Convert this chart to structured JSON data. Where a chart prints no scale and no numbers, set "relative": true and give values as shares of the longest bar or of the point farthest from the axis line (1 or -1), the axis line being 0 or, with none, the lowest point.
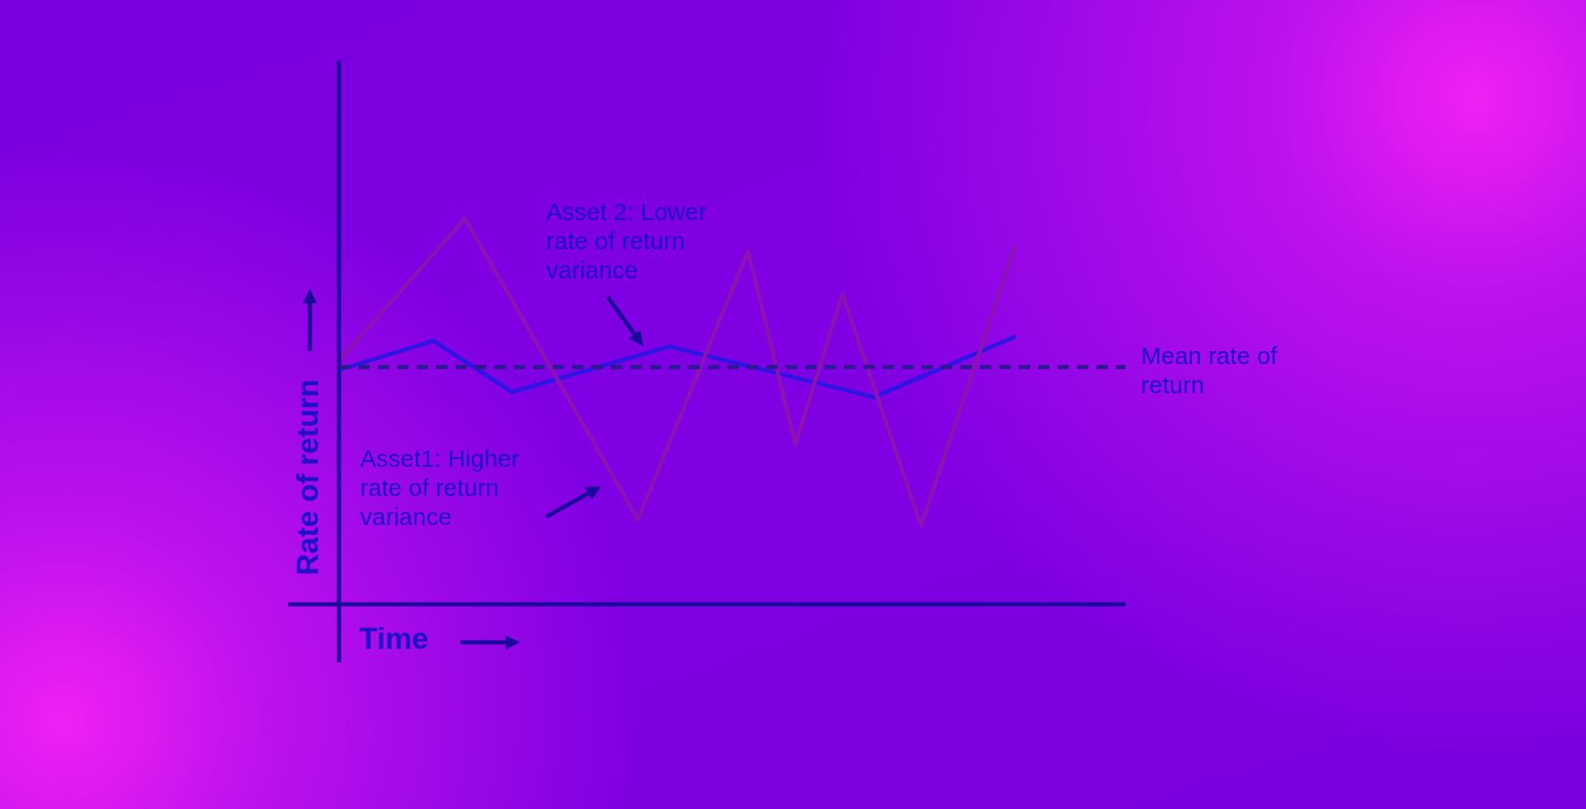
{
  "chart_data": {
    "type": "line",
    "relative": true,
    "xlabel": "Time",
    "ylabel": "Rate of return",
    "categories": [
      null,
      null,
      null,
      null,
      null,
      null,
      null,
      null,
      null,
      null,
      null,
      null,
      null,
      null,
      null,
      null,
      null,
      null,
      null,
      null,
      null,
      null,
      null,
      null,
      null,
      null,
      null,
      null,
      null,
      null,
      null,
      null,
      null,
      null,
      null,
      null,
      null,
      null,
      null,
      null,
      null,
      null,
      null,
      null,
      null,
      null,
      null,
      null,
      null,
      null,
      null
    ],
    "series": [
      {
        "color": "#8c12b4",
        "values": [
          0.631,
          null,
          null,
          null,
          null,
          null,
          null,
          null,
          1,
          null,
          null,
          null,
          null,
          null,
          null,
          null,
          null,
          null,
          null,
          0.22,
          null,
          null,
          null,
          null,
          null,
          null,
          0.916,
          null,
          null,
          0.414,
          null,
          null,
          0.804,
          null,
          null,
          null,
          null,
          0.204,
          null,
          null,
          null,
          null,
          null,
          0.929,
          null,
          null,
          null,
          null,
          null,
          null,
          null
        ]
      },
      {
        "color": "#2c14e4",
        "values": [
          0.607,
          null,
          null,
          null,
          null,
          null,
          0.683,
          null,
          null,
          null,
          null,
          0.55,
          null,
          null,
          null,
          null,
          null,
          null,
          null,
          null,
          null,
          0.668,
          null,
          null,
          null,
          null,
          null,
          null,
          null,
          null,
          null,
          null,
          null,
          null,
          0.537,
          null,
          null,
          null,
          null,
          null,
          null,
          null,
          null,
          0.694,
          null,
          null,
          null,
          null,
          null,
          null,
          null
        ]
      }
    ],
    "ref_lines": [
      {
        "axis": "y",
        "value": 0.615,
        "label": "Mean rate of return",
        "color": "#2a1890",
        "line_style": "dashed"
      }
    ],
    "annotations": [
      "Asset 2: Lower rate of return variance",
      "Asset1: Higher rate of return variance"
    ]
  }
}
